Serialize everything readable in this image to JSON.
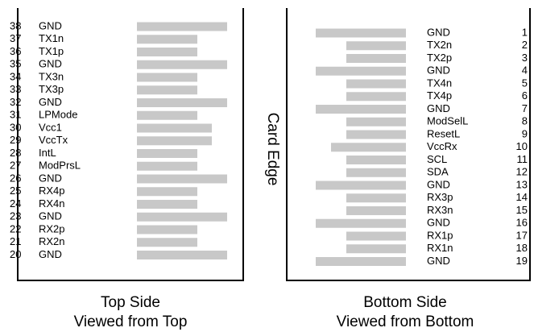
{
  "card_edge": "Card Edge",
  "top_side": {
    "label": "Top Side",
    "sublabel": "Viewed from Top",
    "pins": [
      {
        "number": 38,
        "name": "GND"
      },
      {
        "number": 37,
        "name": "TX1n"
      },
      {
        "number": 36,
        "name": "TX1p"
      },
      {
        "number": 35,
        "name": "GND"
      },
      {
        "number": 34,
        "name": "TX3n"
      },
      {
        "number": 33,
        "name": "TX3p"
      },
      {
        "number": 32,
        "name": "GND"
      },
      {
        "number": 31,
        "name": "LPMode"
      },
      {
        "number": 30,
        "name": "Vcc1"
      },
      {
        "number": 29,
        "name": "VccTx"
      },
      {
        "number": 28,
        "name": "IntL"
      },
      {
        "number": 27,
        "name": "ModPrsL"
      },
      {
        "number": 26,
        "name": "GND"
      },
      {
        "number": 25,
        "name": "RX4p"
      },
      {
        "number": 24,
        "name": "RX4n"
      },
      {
        "number": 23,
        "name": "GND"
      },
      {
        "number": 22,
        "name": "RX2p"
      },
      {
        "number": 21,
        "name": "RX2n"
      },
      {
        "number": 20,
        "name": "GND"
      }
    ]
  },
  "bottom_side": {
    "label": "Bottom Side",
    "sublabel": "Viewed from Bottom",
    "pins": [
      {
        "number": 1,
        "name": "GND"
      },
      {
        "number": 2,
        "name": "TX2n"
      },
      {
        "number": 3,
        "name": "TX2p"
      },
      {
        "number": 4,
        "name": "GND"
      },
      {
        "number": 5,
        "name": "TX4n"
      },
      {
        "number": 6,
        "name": "TX4p"
      },
      {
        "number": 7,
        "name": "GND"
      },
      {
        "number": 8,
        "name": "ModSelL"
      },
      {
        "number": 9,
        "name": "ResetL"
      },
      {
        "number": 10,
        "name": "VccRx"
      },
      {
        "number": 11,
        "name": "SCL"
      },
      {
        "number": 12,
        "name": "SDA"
      },
      {
        "number": 13,
        "name": "GND"
      },
      {
        "number": 14,
        "name": "RX3p"
      },
      {
        "number": 15,
        "name": "RX3n"
      },
      {
        "number": 16,
        "name": "GND"
      },
      {
        "number": 17,
        "name": "RX1p"
      },
      {
        "number": 18,
        "name": "RX1n"
      },
      {
        "number": 19,
        "name": "GND"
      }
    ]
  }
}
